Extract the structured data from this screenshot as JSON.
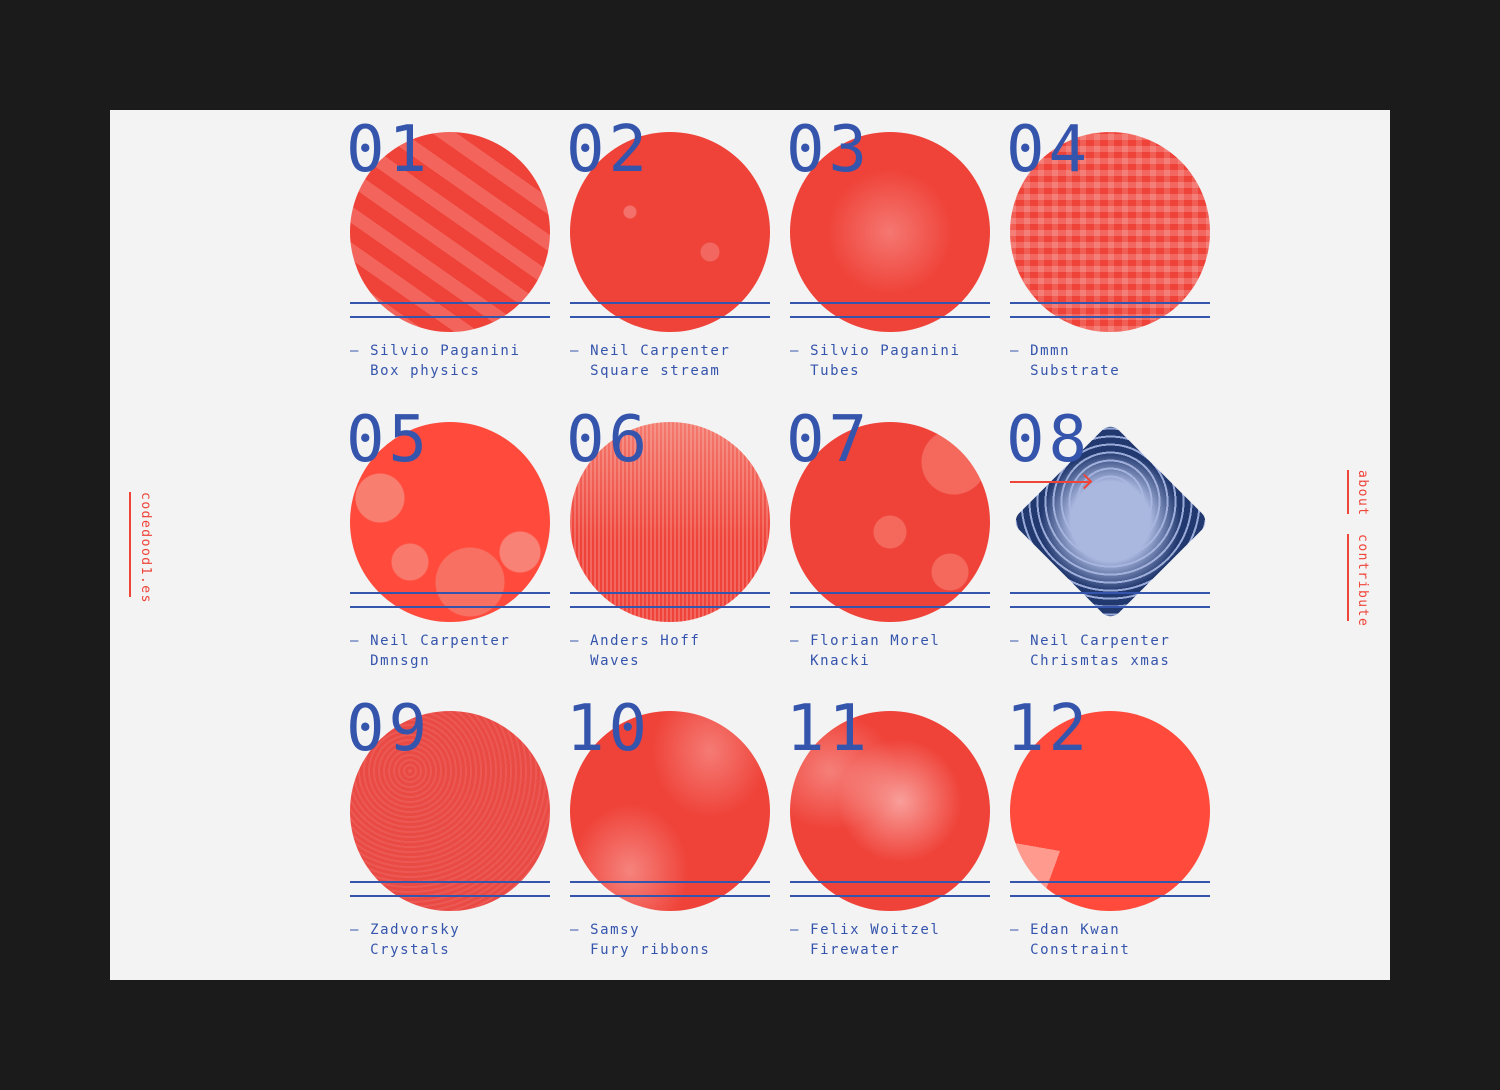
{
  "site": {
    "name": "codedood1.es"
  },
  "nav": {
    "about": "about",
    "contribute": "contribute"
  },
  "colors": {
    "accent_red": "#ef4438",
    "blue": "#3555ad",
    "background": "#f3f3f3",
    "frame": "#1b1b1b"
  },
  "cards": [
    {
      "number": "01",
      "author": "Silvio Paganini",
      "title": "Box physics"
    },
    {
      "number": "02",
      "author": "Neil Carpenter",
      "title": "Square stream"
    },
    {
      "number": "03",
      "author": "Silvio Paganini",
      "title": "Tubes"
    },
    {
      "number": "04",
      "author": "Dmmn",
      "title": "Substrate"
    },
    {
      "number": "05",
      "author": "Neil Carpenter",
      "title": "Dmnsgn"
    },
    {
      "number": "06",
      "author": "Anders Hoff",
      "title": "Waves"
    },
    {
      "number": "07",
      "author": "Florian Morel",
      "title": "Knacki"
    },
    {
      "number": "08",
      "author": "Neil Carpenter",
      "title": "Chrismtas xmas",
      "active": true
    },
    {
      "number": "09",
      "author": "Zadvorsky",
      "title": "Crystals"
    },
    {
      "number": "10",
      "author": "Samsy",
      "title": "Fury ribbons"
    },
    {
      "number": "11",
      "author": "Felix Woitzel",
      "title": "Firewater"
    },
    {
      "number": "12",
      "author": "Edan Kwan",
      "title": "Constraint"
    }
  ]
}
